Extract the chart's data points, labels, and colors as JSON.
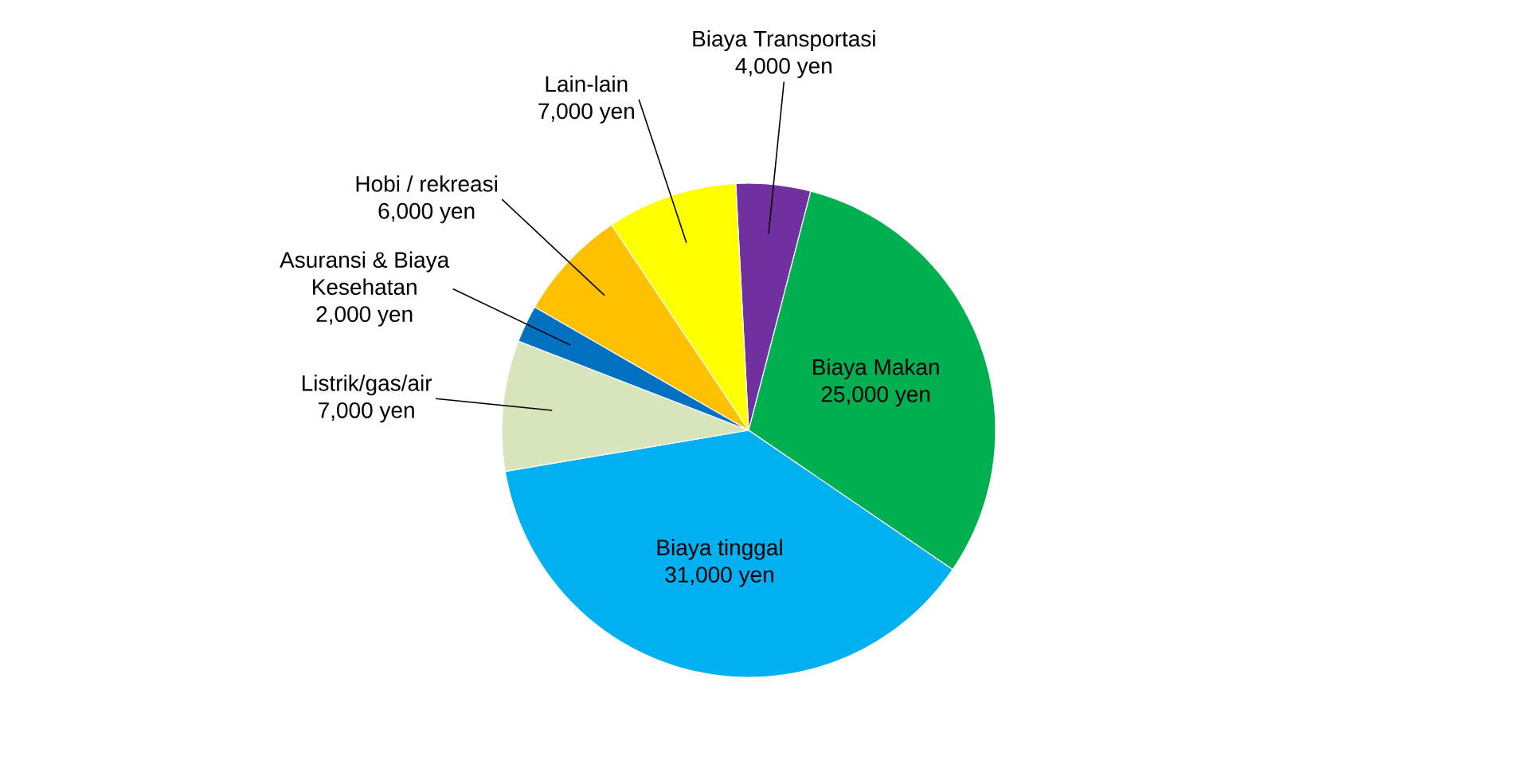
{
  "chart_data": {
    "type": "pie",
    "categories": [
      "Biaya Transportasi",
      "Biaya Makan",
      "Biaya tinggal",
      "Listrik/gas/air",
      "Asuransi & Biaya Kesehatan",
      "Hobi / rekreasi",
      "Lain-lain"
    ],
    "values": [
      4000,
      25000,
      31000,
      7000,
      2000,
      6000,
      7000
    ],
    "colors": [
      "#7030a0",
      "#00b050",
      "#00b0f0",
      "#d8e4bc",
      "#0070c0",
      "#ffc000",
      "#ffff00"
    ],
    "value_labels": [
      "4,000 yen",
      "25,000 yen",
      "31,000 yen",
      "7,000 yen",
      "2,000 yen",
      "6,000 yen",
      "7,000 yen"
    ]
  }
}
